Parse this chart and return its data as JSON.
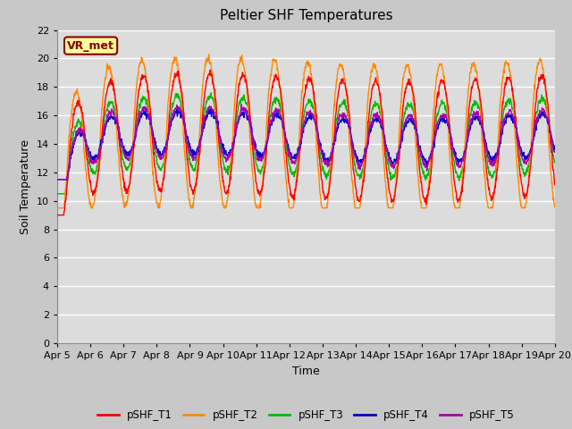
{
  "title": "Peltier SHF Temperatures",
  "xlabel": "Time",
  "ylabel": "Soil Temperature",
  "ylim": [
    0,
    22
  ],
  "yticks": [
    0,
    2,
    4,
    6,
    8,
    10,
    12,
    14,
    16,
    18,
    20,
    22
  ],
  "annotation_text": "VR_met",
  "annotation_color": "#8B0000",
  "annotation_bg": "#FFFF99",
  "colors": {
    "pSHF_T1": "#FF0000",
    "pSHF_T2": "#FF8800",
    "pSHF_T3": "#00BB00",
    "pSHF_T4": "#0000CC",
    "pSHF_T5": "#AA00AA"
  },
  "fig_bg": "#C8C8C8",
  "plot_bg": "#DCDCDC",
  "xtick_labels": [
    "Apr 5",
    "Apr 6",
    "Apr 7",
    "Apr 8",
    "Apr 9",
    "Apr 10",
    "Apr 11",
    "Apr 12",
    "Apr 13",
    "Apr 14",
    "Apr 15",
    "Apr 16",
    "Apr 17",
    "Apr 18",
    "Apr 19",
    "Apr 20"
  ]
}
